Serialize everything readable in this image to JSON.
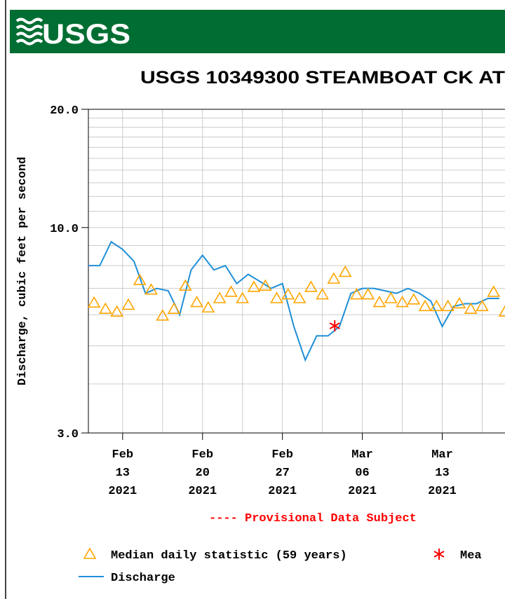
{
  "header": {
    "logo": "USGS"
  },
  "chart_data": {
    "type": "line",
    "title": "USGS 10349300 STEAMBOAT CK AT",
    "y_label": "Discharge, cubic feet per second",
    "note": "---- Provisional Data Subject",
    "log_y": true,
    "grid": true,
    "ylim": [
      3,
      20
    ],
    "yticks": [
      {
        "value": 3,
        "label": "3.0"
      },
      {
        "value": 10,
        "label": "10.0"
      },
      {
        "value": 20,
        "label": "20.0"
      }
    ],
    "yminorticks": [
      4,
      5,
      6,
      7,
      8,
      9,
      11,
      12,
      13,
      14,
      15,
      16,
      17,
      18,
      19
    ],
    "xlim": [
      "2021-02-10T00:00",
      "2021-03-18T12:00"
    ],
    "xticks": [
      {
        "value": "2021-02-13",
        "label": "Feb 13 2021"
      },
      {
        "value": "2021-02-20",
        "label": "Feb 20 2021"
      },
      {
        "value": "2021-02-27",
        "label": "Feb 27 2021"
      },
      {
        "value": "2021-03-06",
        "label": "Mar 06 2021"
      },
      {
        "value": "2021-03-13",
        "label": "Mar 13 2021"
      }
    ],
    "xminorticks": [
      "2021-02-16T12:00",
      "2021-02-23T12:00",
      "2021-03-02T12:00",
      "2021-03-09T12:00",
      "2021-03-16T12:00"
    ],
    "series": [
      {
        "name": "Median daily statistic (59 years)",
        "kind": "marker",
        "color": "#ffa500",
        "x": [
          "2021-02-10T12:00",
          "2021-02-11T12:00",
          "2021-02-12T12:00",
          "2021-02-13T12:00",
          "2021-02-14T12:00",
          "2021-02-15T12:00",
          "2021-02-16T12:00",
          "2021-02-17T12:00",
          "2021-02-18T12:00",
          "2021-02-19T12:00",
          "2021-02-20T12:00",
          "2021-02-21T12:00",
          "2021-02-22T12:00",
          "2021-02-23T12:00",
          "2021-02-24T12:00",
          "2021-02-25T12:00",
          "2021-02-26T12:00",
          "2021-02-27T12:00",
          "2021-02-28T12:00",
          "2021-03-01T12:00",
          "2021-03-02T12:00",
          "2021-03-03T12:00",
          "2021-03-04T12:00",
          "2021-03-05T12:00",
          "2021-03-06T12:00",
          "2021-03-07T12:00",
          "2021-03-08T12:00",
          "2021-03-09T12:00",
          "2021-03-10T12:00",
          "2021-03-11T12:00",
          "2021-03-12T12:00",
          "2021-03-13T12:00",
          "2021-03-14T12:00",
          "2021-03-15T12:00",
          "2021-03-16T12:00",
          "2021-03-17T12:00",
          "2021-03-18T12:00"
        ],
        "values": [
          6.43,
          6.2,
          6.1,
          6.35,
          7.34,
          6.94,
          5.96,
          6.2,
          7.1,
          6.45,
          6.25,
          6.6,
          6.85,
          6.6,
          7.05,
          7.1,
          6.6,
          6.75,
          6.6,
          7.05,
          6.75,
          7.4,
          7.7,
          6.75,
          6.75,
          6.45,
          6.6,
          6.45,
          6.55,
          6.3,
          6.3,
          6.3,
          6.4,
          6.2,
          6.3,
          6.85,
          6.1
        ]
      },
      {
        "name": "Mea",
        "kind": "star",
        "color": "#ff0000",
        "x": [
          "2021-03-03T14:00"
        ],
        "values": [
          5.62
        ]
      },
      {
        "name": "Discharge",
        "kind": "line",
        "color": "#1f8fd8",
        "x": [
          "2021-02-10T00:00",
          "2021-02-11T00:00",
          "2021-02-12T00:00",
          "2021-02-13T00:00",
          "2021-02-14T00:00",
          "2021-02-15T00:00",
          "2021-02-16T00:00",
          "2021-02-17T00:00",
          "2021-02-18T00:00",
          "2021-02-19T00:00",
          "2021-02-20T00:00",
          "2021-02-21T00:00",
          "2021-02-22T00:00",
          "2021-02-23T00:00",
          "2021-02-24T00:00",
          "2021-02-25T00:00",
          "2021-02-26T00:00",
          "2021-02-27T00:00",
          "2021-02-28T00:00",
          "2021-03-01T00:00",
          "2021-03-02T00:00",
          "2021-03-03T00:00",
          "2021-03-04T00:00",
          "2021-03-05T00:00",
          "2021-03-06T00:00",
          "2021-03-07T00:00",
          "2021-03-08T00:00",
          "2021-03-09T00:00",
          "2021-03-10T00:00",
          "2021-03-11T00:00",
          "2021-03-12T00:00",
          "2021-03-13T00:00",
          "2021-03-14T00:00",
          "2021-03-15T00:00",
          "2021-03-16T00:00",
          "2021-03-17T00:00",
          "2021-03-18T00:00"
        ],
        "values": [
          8.0,
          8.0,
          9.2,
          8.8,
          8.2,
          6.8,
          7.0,
          6.9,
          6.0,
          7.8,
          8.5,
          7.8,
          8.0,
          7.2,
          7.6,
          7.3,
          7.0,
          7.2,
          5.6,
          4.6,
          5.3,
          5.3,
          5.6,
          6.8,
          7.0,
          7.0,
          6.9,
          6.8,
          7.0,
          6.8,
          6.5,
          5.6,
          6.3,
          6.4,
          6.4,
          6.6,
          6.6
        ]
      }
    ]
  }
}
